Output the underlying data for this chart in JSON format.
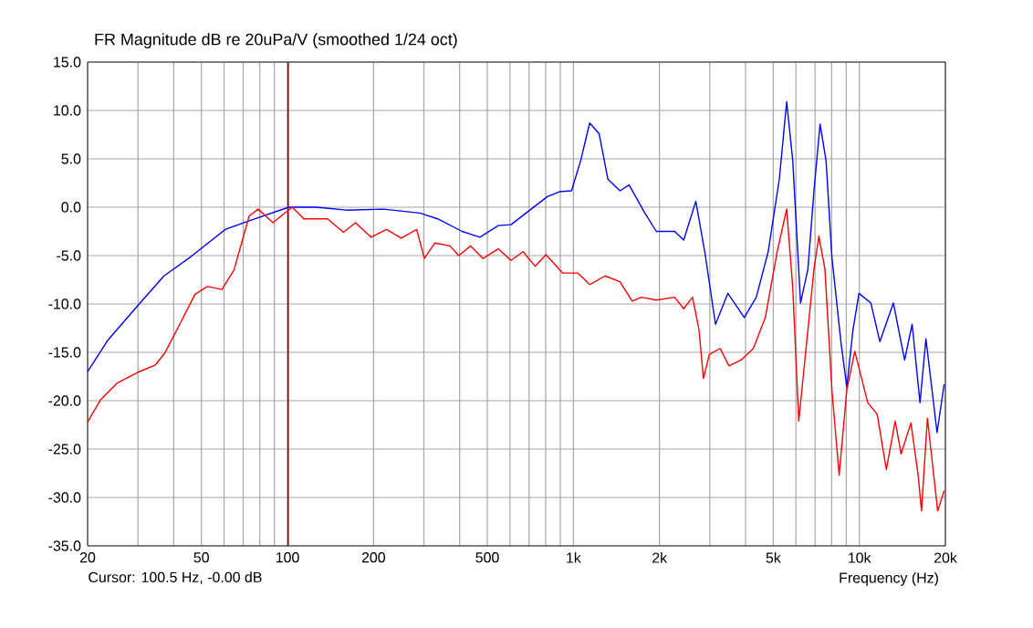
{
  "chart_data": {
    "type": "line",
    "title": "FR Magnitude dB re 20uPa/V (smoothed 1/24 oct)",
    "xlabel": "Frequency (Hz)",
    "log": "x",
    "grid": true,
    "marker": "none",
    "line_style": "solid",
    "xlim": [
      20,
      20000
    ],
    "ylim": [
      -35,
      15
    ],
    "xticks": [
      20,
      {
        "value": 30,
        "label": null
      },
      {
        "value": 40,
        "label": null
      },
      50,
      {
        "value": 60,
        "label": null
      },
      {
        "value": 70,
        "label": null
      },
      {
        "value": 80,
        "label": null
      },
      {
        "value": 90,
        "label": null
      },
      100,
      200,
      {
        "value": 300,
        "label": null
      },
      {
        "value": 400,
        "label": null
      },
      500,
      {
        "value": 600,
        "label": null
      },
      {
        "value": 700,
        "label": null
      },
      {
        "value": 800,
        "label": null
      },
      {
        "value": 900,
        "label": null
      },
      {
        "value": 1000,
        "label": "1k"
      },
      {
        "value": 2000,
        "label": "2k"
      },
      {
        "value": 3000,
        "label": null
      },
      {
        "value": 4000,
        "label": null
      },
      {
        "value": 5000,
        "label": "5k"
      },
      {
        "value": 6000,
        "label": null
      },
      {
        "value": 7000,
        "label": null
      },
      {
        "value": 8000,
        "label": null
      },
      {
        "value": 9000,
        "label": null
      },
      {
        "value": 10000,
        "label": "10k"
      },
      {
        "value": 20000,
        "label": "20k"
      }
    ],
    "yticks": [
      {
        "value": 15,
        "label": "15.0"
      },
      {
        "value": 10,
        "label": "10.0"
      },
      {
        "value": 5,
        "label": "5.0"
      },
      {
        "value": 0,
        "label": "0.0"
      },
      {
        "value": -5,
        "label": "-5.0"
      },
      {
        "value": -10,
        "label": "-10.0"
      },
      {
        "value": -15,
        "label": "-15.0"
      },
      {
        "value": -20,
        "label": "-20.0"
      },
      {
        "value": -25,
        "label": "-25.0"
      },
      {
        "value": -30,
        "label": "-30.0"
      },
      {
        "value": -35,
        "label": "-35.0"
      }
    ],
    "ref_lines": [
      {
        "axis": "x",
        "value": 100.5,
        "color": "#800000"
      }
    ],
    "annotations": [
      "Cursor: 100.5 Hz, -0.00 dB"
    ],
    "series": [
      {
        "color": "#0000ff",
        "x": [
          20,
          23.6,
          30.5,
          37,
          46,
          60.6,
          73.5,
          101,
          126,
          161,
          217,
          290,
          335,
          408,
          471,
          546,
          605,
          811,
          894,
          985,
          1060,
          1140,
          1230,
          1320,
          1455,
          1566,
          1770,
          1950,
          2260,
          2430,
          2680,
          2880,
          3140,
          3470,
          3960,
          4360,
          4800,
          5250,
          5570,
          5850,
          6230,
          6610,
          6940,
          7290,
          7650,
          8020,
          8620,
          9040,
          9500,
          9970,
          10970,
          11800,
          13150,
          14400,
          15300,
          16300,
          17100,
          18700,
          19800
        ],
        "values": [
          -17.0,
          -13.7,
          -9.9,
          -7.1,
          -5.1,
          -2.3,
          -1.4,
          0,
          0,
          -0.3,
          -0.2,
          -0.6,
          -1.2,
          -2.5,
          -3.1,
          -1.9,
          -1.8,
          1.1,
          1.6,
          1.7,
          4.8,
          8.7,
          7.6,
          2.9,
          1.7,
          2.3,
          -0.5,
          -2.5,
          -2.5,
          -3.4,
          0.6,
          -4.6,
          -12.1,
          -8.9,
          -11.4,
          -9.3,
          -4.6,
          2.9,
          10.9,
          4.8,
          -9.9,
          -6.4,
          1.7,
          8.6,
          4.8,
          -5.2,
          -13.9,
          -18.6,
          -12.7,
          -8.9,
          -9.9,
          -13.9,
          -9.9,
          -15.8,
          -12.1,
          -20.2,
          -13.6,
          -23.3,
          -18.3
        ]
      },
      {
        "color": "#ff0000",
        "x": [
          20,
          22.2,
          25.3,
          29.8,
          34.5,
          37.2,
          42,
          47.5,
          52.5,
          59,
          65,
          73.5,
          79,
          89,
          96,
          104,
          114,
          138,
          157,
          173,
          196,
          222,
          250,
          283,
          301,
          328,
          370,
          397,
          437,
          483,
          546,
          605,
          667,
          735,
          802,
          916,
          1035,
          1140,
          1290,
          1455,
          1605,
          1730,
          1950,
          2260,
          2430,
          2610,
          2750,
          2850,
          2990,
          3260,
          3500,
          3860,
          4260,
          4690,
          5160,
          5570,
          5850,
          6140,
          6610,
          6940,
          7220,
          7580,
          8020,
          8500,
          9040,
          9640,
          10700,
          11550,
          12430,
          13350,
          14000,
          15150,
          16060,
          16500,
          17300,
          18800,
          19800
        ],
        "values": [
          -22.2,
          -19.9,
          -18.2,
          -17.1,
          -16.3,
          -15.1,
          -12.1,
          -9.0,
          -8.2,
          -8.5,
          -6.5,
          -0.9,
          -0.2,
          -1.6,
          -0.8,
          0,
          -1.2,
          -1.2,
          -2.6,
          -1.6,
          -3.1,
          -2.3,
          -3.2,
          -2.3,
          -5.3,
          -3.7,
          -4.0,
          -5.0,
          -4.0,
          -5.3,
          -4.3,
          -5.5,
          -4.6,
          -6.1,
          -4.9,
          -6.8,
          -6.8,
          -8.0,
          -7.1,
          -7.7,
          -9.7,
          -9.3,
          -9.6,
          -9.3,
          -10.5,
          -9.3,
          -12.7,
          -17.7,
          -15.2,
          -14.6,
          -16.4,
          -15.8,
          -14.6,
          -11.4,
          -4.6,
          -0.2,
          -8.3,
          -22.1,
          -12.7,
          -6.4,
          -3.0,
          -6.4,
          -18.9,
          -27.7,
          -18.9,
          -14.9,
          -20.2,
          -21.4,
          -27.1,
          -22.1,
          -25.5,
          -22.3,
          -27.7,
          -31.4,
          -21.8,
          -31.4,
          -29.3
        ]
      }
    ]
  }
}
